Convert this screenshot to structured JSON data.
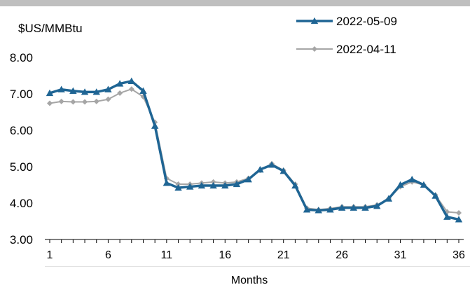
{
  "chart_data": {
    "type": "line",
    "ylabel": "$US/MMBtu",
    "xlabel": "Months",
    "ylim": [
      3.0,
      8.0
    ],
    "yticks": [
      "3.00",
      "4.00",
      "5.00",
      "6.00",
      "7.00",
      "8.00"
    ],
    "xlim": [
      1,
      36
    ],
    "xticks": [
      "1",
      "6",
      "11",
      "16",
      "21",
      "26",
      "31",
      "36"
    ],
    "grid": false,
    "legend_position": "top-right",
    "x": [
      1,
      2,
      3,
      4,
      5,
      6,
      7,
      8,
      9,
      10,
      11,
      12,
      13,
      14,
      15,
      16,
      17,
      18,
      19,
      20,
      21,
      22,
      23,
      24,
      25,
      26,
      27,
      28,
      29,
      30,
      31,
      32,
      33,
      34,
      35,
      36
    ],
    "series": [
      {
        "name": "2022-05-09",
        "color": "#1f6594",
        "marker": "triangle",
        "values": [
          7.02,
          7.12,
          7.08,
          7.05,
          7.05,
          7.12,
          7.28,
          7.35,
          7.08,
          6.12,
          4.55,
          4.42,
          4.45,
          4.48,
          4.48,
          4.48,
          4.52,
          4.65,
          4.92,
          5.05,
          4.88,
          4.48,
          3.82,
          3.8,
          3.82,
          3.87,
          3.87,
          3.87,
          3.92,
          4.12,
          4.5,
          4.65,
          4.5,
          4.2,
          3.62,
          3.55
        ]
      },
      {
        "name": "2022-04-11",
        "color": "#a6a6a6",
        "marker": "diamond",
        "values": [
          6.74,
          6.79,
          6.78,
          6.78,
          6.79,
          6.85,
          7.02,
          7.13,
          6.92,
          6.22,
          4.68,
          4.52,
          4.52,
          4.55,
          4.58,
          4.55,
          4.58,
          4.68,
          4.9,
          5.08,
          4.9,
          4.52,
          3.86,
          3.82,
          3.85,
          3.9,
          3.9,
          3.9,
          3.95,
          4.12,
          4.45,
          4.58,
          4.5,
          4.22,
          3.76,
          3.73
        ]
      }
    ]
  }
}
